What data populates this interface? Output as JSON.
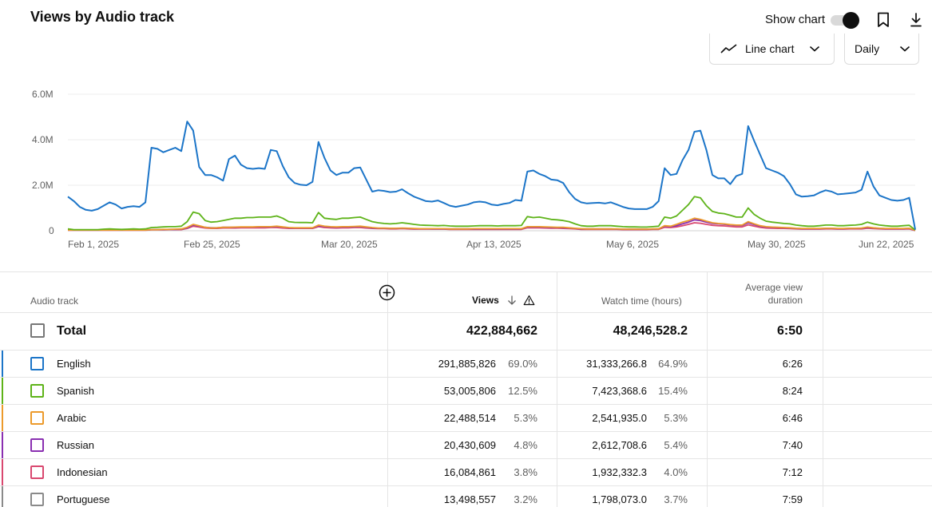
{
  "header": {
    "title": "Views by Audio track",
    "show_chart_label": "Show chart",
    "chart_type": "Line chart",
    "granularity": "Daily"
  },
  "icons": {
    "bookmark": "bookmark-icon",
    "download": "download-icon",
    "line_chart": "line-chart-icon",
    "chevron": "chevron-down-icon",
    "add": "add-circle-icon",
    "sort": "arrow-down-icon",
    "warning": "warning-icon"
  },
  "colors": {
    "English": "#1c75c8",
    "Spanish": "#5eb319",
    "Arabic": "#ec9a2b",
    "Russian": "#8a2fb1",
    "Indonesian": "#d9486f",
    "Portuguese": "#8a8a8a"
  },
  "chart_data": {
    "type": "line",
    "title": "",
    "xlabel": "",
    "ylabel": "",
    "x_ticks": [
      "Feb 1, 2025",
      "Feb 25, 2025",
      "Mar 20, 2025",
      "Apr 13, 2025",
      "May 6, 2025",
      "May 30, 2025",
      "Jun 22, 2025"
    ],
    "y_ticks": [
      "0",
      "2.0M",
      "4.0M",
      "6.0M"
    ],
    "ylim": [
      0,
      6000000
    ],
    "x_start": "2025-02-01",
    "x_end": "2025-06-22",
    "series": [
      {
        "name": "English",
        "values": [
          1.5,
          1.3,
          1.05,
          0.92,
          0.88,
          0.95,
          1.1,
          1.25,
          1.15,
          0.98,
          1.05,
          1.08,
          1.05,
          1.25,
          3.65,
          3.6,
          3.45,
          3.55,
          3.65,
          3.5,
          4.8,
          4.4,
          2.8,
          2.45,
          2.45,
          2.35,
          2.2,
          3.15,
          3.3,
          2.9,
          2.75,
          2.72,
          2.75,
          2.72,
          3.55,
          3.5,
          2.85,
          2.35,
          2.1,
          2.02,
          2.0,
          2.15,
          3.9,
          3.2,
          2.65,
          2.45,
          2.55,
          2.55,
          2.75,
          2.78,
          2.25,
          1.72,
          1.78,
          1.75,
          1.7,
          1.72,
          1.82,
          1.65,
          1.5,
          1.4,
          1.3,
          1.28,
          1.33,
          1.22,
          1.1,
          1.05,
          1.1,
          1.15,
          1.25,
          1.28,
          1.25,
          1.15,
          1.12,
          1.18,
          1.22,
          1.35,
          1.32,
          2.6,
          2.65,
          2.5,
          2.4,
          2.25,
          2.22,
          2.1,
          1.7,
          1.4,
          1.25,
          1.2,
          1.22,
          1.23,
          1.2,
          1.25,
          1.15,
          1.05,
          0.98,
          0.95,
          0.95,
          0.95,
          1.05,
          1.3,
          2.75,
          2.45,
          2.5,
          3.1,
          3.55,
          4.35,
          4.4,
          3.55,
          2.45,
          2.3,
          2.3,
          2.05,
          2.4,
          2.5,
          4.6,
          3.95,
          3.35,
          2.75,
          2.65,
          2.55,
          2.4,
          2.05,
          1.6,
          1.5,
          1.52,
          1.55,
          1.68,
          1.78,
          1.72,
          1.6,
          1.62,
          1.65,
          1.68,
          1.8,
          2.6,
          1.95,
          1.55,
          1.45,
          1.35,
          1.32,
          1.35,
          1.45,
          0.05
        ]
      },
      {
        "name": "Spanish",
        "values": [
          0.08,
          0.05,
          0.05,
          0.05,
          0.05,
          0.05,
          0.07,
          0.08,
          0.07,
          0.06,
          0.07,
          0.08,
          0.07,
          0.08,
          0.14,
          0.15,
          0.17,
          0.18,
          0.18,
          0.2,
          0.4,
          0.82,
          0.75,
          0.45,
          0.38,
          0.4,
          0.45,
          0.5,
          0.55,
          0.55,
          0.58,
          0.58,
          0.6,
          0.6,
          0.6,
          0.65,
          0.55,
          0.4,
          0.37,
          0.36,
          0.36,
          0.35,
          0.8,
          0.55,
          0.52,
          0.5,
          0.55,
          0.55,
          0.58,
          0.6,
          0.5,
          0.4,
          0.35,
          0.32,
          0.3,
          0.32,
          0.35,
          0.32,
          0.28,
          0.25,
          0.24,
          0.23,
          0.22,
          0.23,
          0.21,
          0.2,
          0.2,
          0.2,
          0.21,
          0.22,
          0.22,
          0.22,
          0.21,
          0.22,
          0.22,
          0.22,
          0.23,
          0.62,
          0.58,
          0.6,
          0.55,
          0.5,
          0.48,
          0.45,
          0.4,
          0.3,
          0.22,
          0.2,
          0.2,
          0.22,
          0.22,
          0.22,
          0.2,
          0.18,
          0.17,
          0.17,
          0.16,
          0.16,
          0.18,
          0.2,
          0.6,
          0.55,
          0.65,
          0.9,
          1.15,
          1.5,
          1.45,
          1.1,
          0.85,
          0.78,
          0.75,
          0.68,
          0.6,
          0.6,
          1.0,
          0.72,
          0.55,
          0.42,
          0.38,
          0.35,
          0.32,
          0.3,
          0.25,
          0.22,
          0.2,
          0.2,
          0.22,
          0.25,
          0.25,
          0.22,
          0.22,
          0.24,
          0.25,
          0.28,
          0.38,
          0.3,
          0.25,
          0.22,
          0.2,
          0.2,
          0.22,
          0.24,
          0.03
        ]
      },
      {
        "name": "Arabic",
        "values": [
          0.03,
          0.03,
          0.03,
          0.03,
          0.03,
          0.03,
          0.03,
          0.03,
          0.03,
          0.03,
          0.03,
          0.03,
          0.03,
          0.03,
          0.05,
          0.05,
          0.06,
          0.06,
          0.07,
          0.08,
          0.15,
          0.28,
          0.22,
          0.15,
          0.12,
          0.13,
          0.15,
          0.15,
          0.16,
          0.17,
          0.17,
          0.17,
          0.18,
          0.18,
          0.18,
          0.2,
          0.17,
          0.14,
          0.13,
          0.13,
          0.13,
          0.13,
          0.25,
          0.2,
          0.18,
          0.17,
          0.18,
          0.18,
          0.19,
          0.2,
          0.17,
          0.14,
          0.12,
          0.12,
          0.11,
          0.11,
          0.12,
          0.11,
          0.1,
          0.09,
          0.09,
          0.09,
          0.09,
          0.09,
          0.08,
          0.08,
          0.08,
          0.08,
          0.09,
          0.09,
          0.09,
          0.09,
          0.09,
          0.09,
          0.09,
          0.09,
          0.09,
          0.18,
          0.18,
          0.18,
          0.17,
          0.16,
          0.15,
          0.15,
          0.13,
          0.11,
          0.09,
          0.08,
          0.08,
          0.08,
          0.08,
          0.08,
          0.08,
          0.07,
          0.07,
          0.07,
          0.07,
          0.07,
          0.08,
          0.08,
          0.22,
          0.2,
          0.28,
          0.38,
          0.45,
          0.55,
          0.5,
          0.42,
          0.35,
          0.32,
          0.3,
          0.27,
          0.25,
          0.25,
          0.4,
          0.3,
          0.22,
          0.18,
          0.16,
          0.15,
          0.14,
          0.13,
          0.11,
          0.1,
          0.1,
          0.1,
          0.1,
          0.11,
          0.11,
          0.1,
          0.1,
          0.11,
          0.11,
          0.12,
          0.16,
          0.13,
          0.11,
          0.1,
          0.1,
          0.1,
          0.1,
          0.11,
          0.02
        ]
      },
      {
        "name": "Russian",
        "values": [
          0.03,
          0.03,
          0.03,
          0.03,
          0.03,
          0.03,
          0.03,
          0.03,
          0.03,
          0.03,
          0.03,
          0.03,
          0.03,
          0.03,
          0.05,
          0.05,
          0.05,
          0.06,
          0.06,
          0.07,
          0.12,
          0.25,
          0.2,
          0.15,
          0.13,
          0.13,
          0.15,
          0.15,
          0.15,
          0.16,
          0.16,
          0.16,
          0.17,
          0.17,
          0.17,
          0.18,
          0.16,
          0.13,
          0.12,
          0.12,
          0.12,
          0.12,
          0.22,
          0.18,
          0.16,
          0.15,
          0.16,
          0.16,
          0.17,
          0.18,
          0.15,
          0.12,
          0.11,
          0.11,
          0.1,
          0.1,
          0.11,
          0.1,
          0.09,
          0.09,
          0.09,
          0.08,
          0.08,
          0.08,
          0.08,
          0.08,
          0.08,
          0.08,
          0.08,
          0.08,
          0.08,
          0.08,
          0.08,
          0.08,
          0.08,
          0.08,
          0.08,
          0.16,
          0.16,
          0.16,
          0.15,
          0.14,
          0.14,
          0.13,
          0.12,
          0.1,
          0.08,
          0.08,
          0.08,
          0.08,
          0.08,
          0.08,
          0.07,
          0.07,
          0.07,
          0.07,
          0.07,
          0.07,
          0.07,
          0.08,
          0.2,
          0.18,
          0.22,
          0.3,
          0.38,
          0.48,
          0.45,
          0.38,
          0.32,
          0.3,
          0.28,
          0.25,
          0.23,
          0.23,
          0.35,
          0.27,
          0.2,
          0.16,
          0.15,
          0.14,
          0.13,
          0.12,
          0.1,
          0.09,
          0.09,
          0.09,
          0.09,
          0.1,
          0.1,
          0.09,
          0.09,
          0.1,
          0.1,
          0.11,
          0.14,
          0.12,
          0.1,
          0.09,
          0.09,
          0.09,
          0.09,
          0.1,
          0.02
        ]
      },
      {
        "name": "Indonesian",
        "values": [
          0.02,
          0.02,
          0.02,
          0.02,
          0.02,
          0.02,
          0.02,
          0.02,
          0.02,
          0.02,
          0.02,
          0.02,
          0.02,
          0.02,
          0.04,
          0.04,
          0.04,
          0.05,
          0.05,
          0.05,
          0.1,
          0.2,
          0.16,
          0.12,
          0.1,
          0.1,
          0.12,
          0.12,
          0.12,
          0.13,
          0.13,
          0.13,
          0.13,
          0.13,
          0.14,
          0.14,
          0.12,
          0.1,
          0.1,
          0.1,
          0.1,
          0.1,
          0.18,
          0.14,
          0.13,
          0.12,
          0.13,
          0.13,
          0.14,
          0.14,
          0.12,
          0.1,
          0.09,
          0.09,
          0.08,
          0.08,
          0.09,
          0.08,
          0.07,
          0.07,
          0.07,
          0.07,
          0.07,
          0.07,
          0.06,
          0.06,
          0.06,
          0.06,
          0.06,
          0.06,
          0.06,
          0.06,
          0.06,
          0.06,
          0.06,
          0.06,
          0.06,
          0.13,
          0.13,
          0.13,
          0.12,
          0.11,
          0.11,
          0.1,
          0.09,
          0.08,
          0.06,
          0.06,
          0.06,
          0.06,
          0.06,
          0.06,
          0.06,
          0.05,
          0.05,
          0.05,
          0.05,
          0.05,
          0.06,
          0.06,
          0.15,
          0.14,
          0.17,
          0.22,
          0.28,
          0.35,
          0.33,
          0.28,
          0.24,
          0.22,
          0.21,
          0.19,
          0.17,
          0.17,
          0.26,
          0.2,
          0.15,
          0.12,
          0.11,
          0.1,
          0.1,
          0.09,
          0.08,
          0.07,
          0.07,
          0.07,
          0.07,
          0.08,
          0.08,
          0.07,
          0.07,
          0.08,
          0.08,
          0.08,
          0.11,
          0.09,
          0.08,
          0.07,
          0.07,
          0.07,
          0.07,
          0.08,
          0.01
        ]
      }
    ]
  },
  "table": {
    "headers": {
      "audio_track": "Audio track",
      "views": "Views",
      "watch_time": "Watch time (hours)",
      "avg_line1": "Average view",
      "avg_line2": "duration"
    },
    "total": {
      "label": "Total",
      "views": "422,884,662",
      "watch_time": "48,246,528.2",
      "avg": "6:50"
    },
    "rows": [
      {
        "name": "English",
        "views": "291,885,826",
        "views_pct": "69.0%",
        "watch": "31,333,266.8",
        "watch_pct": "64.9%",
        "avg": "6:26"
      },
      {
        "name": "Spanish",
        "views": "53,005,806",
        "views_pct": "12.5%",
        "watch": "7,423,368.6",
        "watch_pct": "15.4%",
        "avg": "8:24"
      },
      {
        "name": "Arabic",
        "views": "22,488,514",
        "views_pct": "5.3%",
        "watch": "2,541,935.0",
        "watch_pct": "5.3%",
        "avg": "6:46"
      },
      {
        "name": "Russian",
        "views": "20,430,609",
        "views_pct": "4.8%",
        "watch": "2,612,708.6",
        "watch_pct": "5.4%",
        "avg": "7:40"
      },
      {
        "name": "Indonesian",
        "views": "16,084,861",
        "views_pct": "3.8%",
        "watch": "1,932,332.3",
        "watch_pct": "4.0%",
        "avg": "7:12"
      },
      {
        "name": "Portuguese",
        "views": "13,498,557",
        "views_pct": "3.2%",
        "watch": "1,798,073.0",
        "watch_pct": "3.7%",
        "avg": "7:59"
      }
    ]
  }
}
